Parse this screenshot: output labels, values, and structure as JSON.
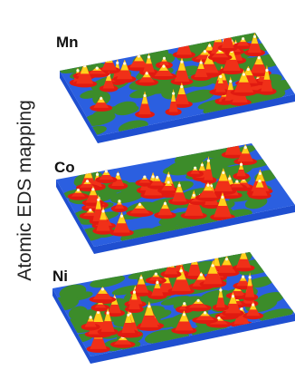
{
  "axis_label": "Atomic EDS mapping",
  "panels": [
    {
      "label": "Mn"
    },
    {
      "label": "Co"
    },
    {
      "label": "Ni"
    }
  ]
}
